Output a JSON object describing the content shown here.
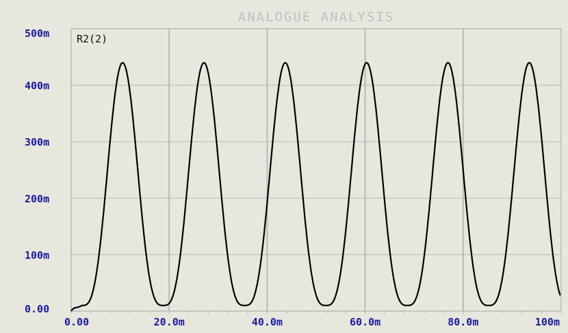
{
  "window": {
    "title": "ANALOGUE ANALYSIS"
  },
  "colors": {
    "background": "#e7e7dd",
    "grid": "#b9b9b9",
    "axis_text": "#1a1a9c",
    "trace": "#000000",
    "title": "#bcc0c6"
  },
  "chart_data": {
    "type": "line",
    "title": "ANALOGUE ANALYSIS",
    "xlabel": "",
    "ylabel": "",
    "xlim": [
      0,
      100
    ],
    "ylim": [
      0,
      500
    ],
    "x_unit": "m",
    "y_unit": "m",
    "x_ticks": [
      "0.00",
      "20.0m",
      "40.0m",
      "60.0m",
      "80.0m",
      "100m"
    ],
    "y_ticks": [
      "0.00",
      "100m",
      "200m",
      "300m",
      "400m",
      "500m"
    ],
    "grid": true,
    "legend": "top-left",
    "series": [
      {
        "name": "R2(2)",
        "color": "#000000",
        "baseline": 10,
        "peak": 440,
        "period": 16.6,
        "first_peak": 10.5,
        "x": [
          0,
          2,
          4,
          6,
          8,
          10,
          10.5,
          13,
          15,
          17,
          19.5,
          21,
          23,
          25,
          27,
          29,
          32,
          34,
          36,
          38,
          40,
          43,
          45,
          47,
          49,
          52,
          54,
          56,
          58,
          60,
          62,
          64,
          66,
          68,
          70,
          72,
          74,
          76,
          78,
          80,
          82,
          84,
          86,
          88,
          90,
          92,
          93,
          95,
          97,
          99,
          100
        ],
        "y": [
          0,
          5,
          40,
          190,
          380,
          435,
          440,
          370,
          160,
          40,
          10,
          15,
          70,
          250,
          410,
          435,
          300,
          120,
          30,
          10,
          40,
          180,
          390,
          438,
          360,
          120,
          30,
          12,
          60,
          300,
          430,
          435,
          300,
          90,
          15,
          12,
          80,
          330,
          432,
          420,
          230,
          60,
          12,
          15,
          100,
          330,
          440,
          420,
          300,
          60,
          10
        ]
      }
    ]
  }
}
